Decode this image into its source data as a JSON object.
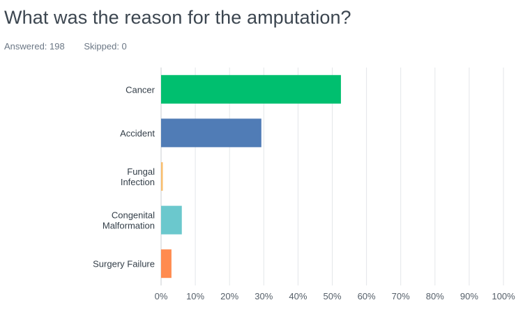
{
  "title": "What was the reason for the amputation?",
  "meta": {
    "answered": "Answered: 198",
    "skipped": "Skipped: 0"
  },
  "chart_data": {
    "type": "bar",
    "orientation": "horizontal",
    "categories": [
      [
        "Cancer"
      ],
      [
        "Accident"
      ],
      [
        "Fungal",
        "Infection"
      ],
      [
        "Congenital",
        "Malformation"
      ],
      [
        "Surgery Failure"
      ]
    ],
    "values": [
      52.53,
      29.29,
      0.51,
      6.06,
      3.03
    ],
    "colors": [
      "#00bf6f",
      "#507cb6",
      "#f9be6d",
      "#6bc8cd",
      "#ff8b4f"
    ],
    "xlim": [
      0,
      100
    ],
    "x_ticks": [
      "0%",
      "10%",
      "20%",
      "30%",
      "40%",
      "50%",
      "60%",
      "70%",
      "80%",
      "90%",
      "100%"
    ],
    "grid": true,
    "legend": "none"
  }
}
